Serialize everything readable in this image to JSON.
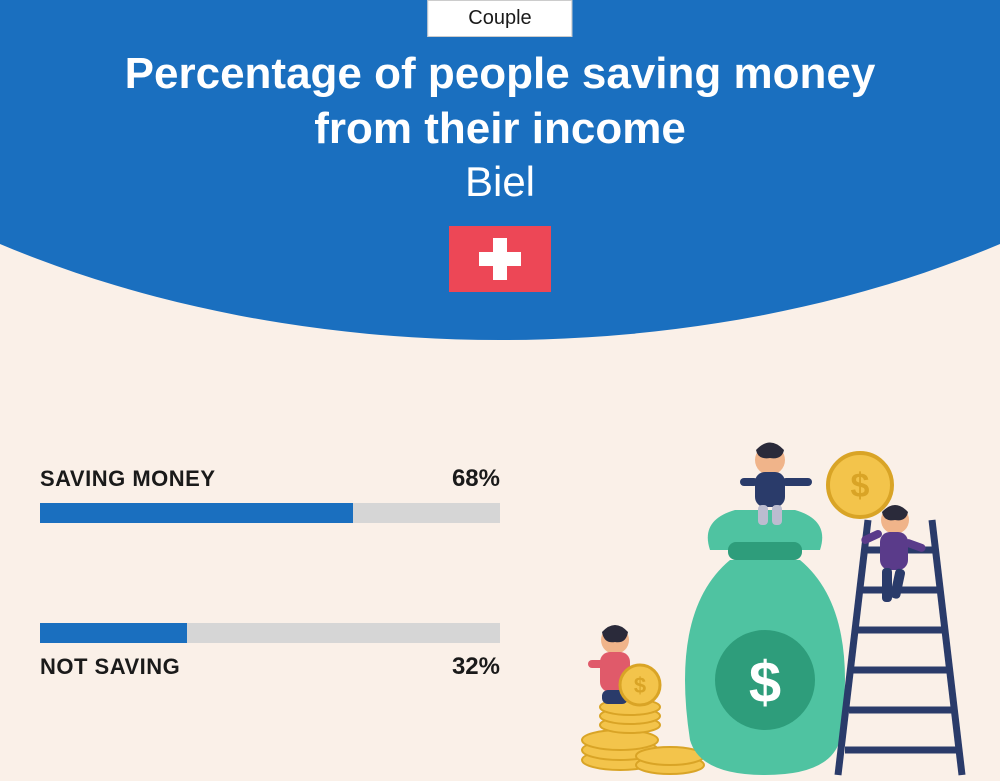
{
  "header": {
    "category": "Couple",
    "title_line1": "Percentage of people saving money",
    "title_line2": "from their income",
    "city": "Biel",
    "flag_bg": "#ed4756",
    "hero_bg": "#1a6fbf"
  },
  "bars": {
    "track_color": "#d6d6d6",
    "fill_color": "#1a6fbf",
    "items": [
      {
        "label": "SAVING MONEY",
        "value": 68,
        "display": "68%",
        "label_position": "above"
      },
      {
        "label": "NOT SAVING",
        "value": 32,
        "display": "32%",
        "label_position": "below"
      }
    ]
  },
  "illustration": {
    "bag_color": "#4fc3a1",
    "bag_dark": "#2e9d7b",
    "coin_color": "#f3c44b",
    "coin_edge": "#d9a426",
    "ladder_color": "#2a3b6a",
    "person1": {
      "skin": "#f0b48a",
      "hair": "#2a2a3a",
      "shirt": "#2a3b6a",
      "pants": "#bcbcd0"
    },
    "person2": {
      "skin": "#f0b48a",
      "hair": "#2a2a3a",
      "shirt": "#5a3b8a",
      "pants": "#2a3b6a"
    },
    "person3": {
      "skin": "#f0b48a",
      "hair": "#2a2a3a",
      "shirt": "#e05a6a",
      "pants": "#2a3b6a"
    }
  },
  "colors": {
    "page_bg": "#faf0e8",
    "text_dark": "#1a1a1a",
    "text_light": "#ffffff"
  }
}
